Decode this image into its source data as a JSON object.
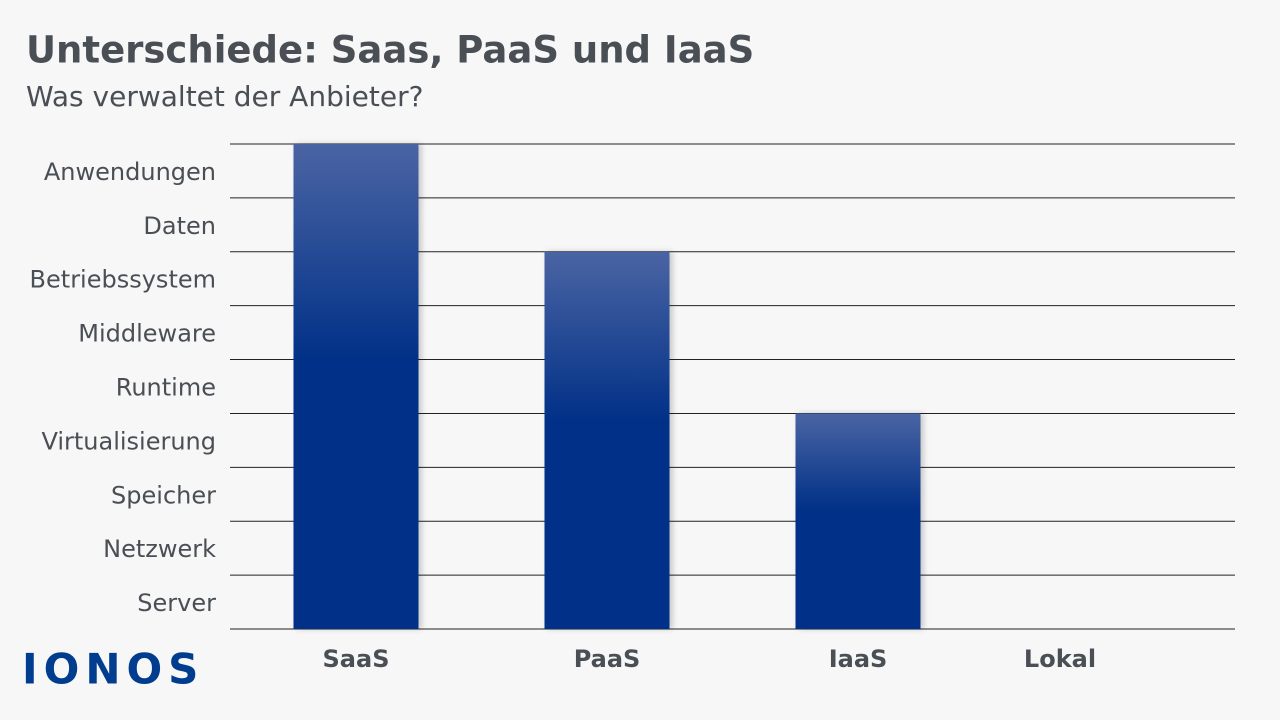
{
  "chart_data": {
    "type": "bar",
    "title": "Unterschiede: Saas, PaaS und IaaS",
    "subtitle": "Was verwaltet der Anbieter?",
    "categories": [
      "SaaS",
      "PaaS",
      "IaaS",
      "Lokal"
    ],
    "values": [
      9,
      7,
      4,
      0
    ],
    "color": "#003087",
    "ylim": [
      0,
      9
    ],
    "yticks": [
      {
        "value": 0.5,
        "label": "Server"
      },
      {
        "value": 1.5,
        "label": "Netzwerk"
      },
      {
        "value": 2.5,
        "label": "Speicher"
      },
      {
        "value": 3.5,
        "label": "Virtualisierung"
      },
      {
        "value": 4.5,
        "label": "Runtime"
      },
      {
        "value": 5.5,
        "label": "Middleware"
      },
      {
        "value": 6.5,
        "label": "Betriebssystem"
      },
      {
        "value": 7.5,
        "label": "Daten"
      },
      {
        "value": 8.5,
        "label": "Anwendungen"
      }
    ],
    "grid": true
  },
  "logo": "IONOS"
}
